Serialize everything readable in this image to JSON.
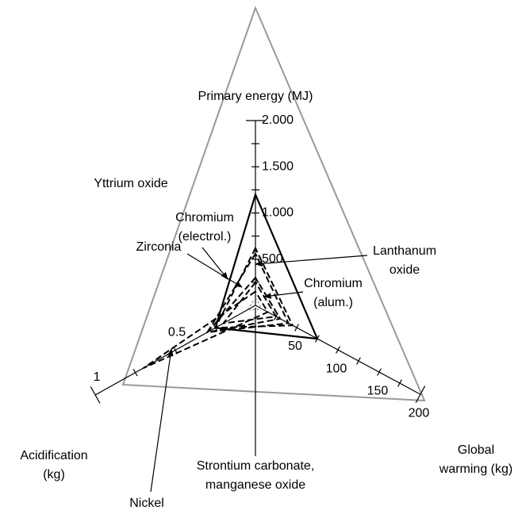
{
  "chart_data": {
    "type": "radar",
    "axes": [
      {
        "label": [
          "Primary energy (MJ)"
        ],
        "lim": [
          0,
          2000
        ],
        "ticks": [
          500,
          {
            "value": 1000,
            "label": "1.000"
          },
          {
            "value": 1500,
            "label": "1.500"
          },
          {
            "value": 2000,
            "label": "2.000"
          }
        ],
        "minor_ticks": [
          250,
          500,
          750,
          1000,
          1250,
          1500,
          1750,
          2000
        ]
      },
      {
        "label": [
          "Acidification",
          "(kg)"
        ],
        "lim": [
          0,
          1
        ],
        "ticks": [
          0.5,
          1
        ],
        "minor_ticks": [
          0.25,
          0.5,
          0.75,
          1
        ]
      },
      {
        "label": [
          "Global",
          "warming (kg)"
        ],
        "lim": [
          0,
          200
        ],
        "ticks": [
          50,
          100,
          150,
          200
        ],
        "minor_ticks": [
          25,
          50,
          75,
          100,
          125,
          150,
          175,
          200
        ]
      }
    ],
    "series": [
      {
        "name": [
          "Yttrium oxide"
        ],
        "color": "#000000",
        "line_style": "solid",
        "values": [
          1200,
          0.25,
          75
        ]
      },
      {
        "name": [
          "Chromium",
          "(electrol.)"
        ],
        "color": "#000000",
        "line_style": "dashed",
        "values": [
          620,
          0.25,
          45
        ]
      },
      {
        "name": [
          "Lanthanum",
          "oxide"
        ],
        "color": "#000000",
        "line_style": "dashed",
        "values": [
          560,
          0.3,
          40
        ]
      },
      {
        "name": [
          "Zirconia"
        ],
        "color": "#000000",
        "line_style": "dashed",
        "values": [
          300,
          0.3,
          30
        ]
      },
      {
        "name": [
          "Chromium",
          "(alum.)"
        ],
        "color": "#000000",
        "line_style": "dashed",
        "values": [
          250,
          0.2,
          25
        ]
      },
      {
        "name": [
          "Nickel"
        ],
        "color": "#000000",
        "line_style": "dashed",
        "values": [
          150,
          0.7,
          15
        ]
      },
      {
        "name": [
          "Strontium carbonate,",
          "manganese oxide"
        ],
        "color": "#888888",
        "line_style": "dotted",
        "values": [
          80,
          0.05,
          8
        ]
      }
    ]
  }
}
